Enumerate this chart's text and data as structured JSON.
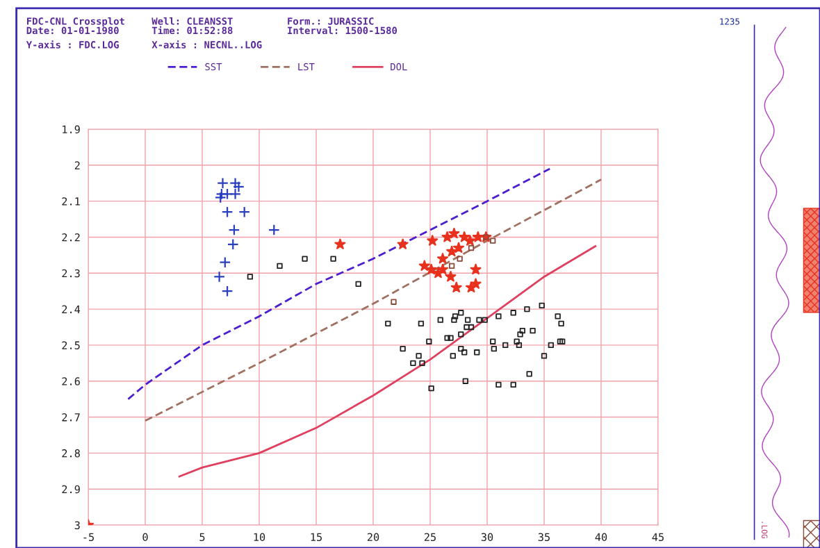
{
  "chart_data": {
    "type": "scatter",
    "title": "FDC-CNL Crossplot",
    "annotations": [
      "Date: 01-01-1980",
      "Well: CLEANSST",
      "Time: 01:52:88",
      "Form.: JURASSIC",
      "Interval: 1500-1580",
      "1235",
      ".LOG",
      "Y-axis : FDC.LOG",
      "X-axis : NECNL..LOG"
    ],
    "xlim": [
      -5,
      45
    ],
    "ylim": [
      3,
      1.9
    ],
    "xticks": [
      -5,
      0,
      5,
      10,
      15,
      20,
      25,
      30,
      35,
      40,
      45
    ],
    "yticks": [
      1.9,
      2,
      2.1,
      2.2,
      2.3,
      2.4,
      2.5,
      2.6,
      2.7,
      2.8,
      2.9,
      3
    ],
    "grid": true,
    "legend": "top",
    "series": [
      {
        "name": "SST",
        "type": "line",
        "line_style": "dashed",
        "marker": "none",
        "color": "#4b1fd0",
        "x": [
          -1.5,
          0,
          5,
          10,
          15,
          20,
          25,
          30,
          35.5
        ],
        "values": [
          2.65,
          2.61,
          2.5,
          2.42,
          2.33,
          2.26,
          2.18,
          2.1,
          2.01
        ]
      },
      {
        "name": "LST",
        "type": "line",
        "line_style": "dashed",
        "marker": "none",
        "color": "#a07060",
        "x": [
          0,
          10,
          20,
          30,
          40
        ],
        "values": [
          2.71,
          2.55,
          2.385,
          2.21,
          2.04
        ]
      },
      {
        "name": "DOL",
        "type": "line",
        "line_style": "solid",
        "marker": "none",
        "color": "#e04060",
        "x": [
          3,
          5,
          10,
          15,
          20,
          25,
          30,
          35,
          39.5
        ],
        "values": [
          2.865,
          2.84,
          2.8,
          2.73,
          2.64,
          2.54,
          2.425,
          2.31,
          2.225
        ]
      },
      {
        "marker": "cross",
        "color": "#2a3fc0",
        "x": [
          6.8,
          7.9,
          8.2,
          6.7,
          7.2,
          7.9,
          6.6,
          7.2,
          8.7,
          7.8,
          11.3,
          7.7,
          7.0,
          6.5,
          7.2
        ],
        "values": [
          2.05,
          2.05,
          2.06,
          2.08,
          2.08,
          2.08,
          2.09,
          2.13,
          2.13,
          2.18,
          2.18,
          2.22,
          2.27,
          2.31,
          2.35
        ]
      },
      {
        "marker": "square",
        "color": "#222222",
        "x": [
          9.2,
          11.8,
          14.0,
          16.5,
          18.7,
          21.3,
          24.2,
          25.9,
          27.2,
          27.7,
          27.1,
          28.3,
          28.2,
          28.6,
          29.3,
          29.8,
          31.0,
          32.3,
          33.5,
          34.8,
          36.2,
          36.5,
          26.5,
          26.8,
          27.7,
          24.9,
          22.6,
          24.0,
          23.5,
          24.3,
          27.0,
          27.7,
          28.0,
          29.1,
          30.5,
          30.6,
          31.6,
          32.6,
          32.8,
          32.9,
          33.1,
          34.0,
          35.0,
          35.6,
          36.4,
          36.6,
          33.7,
          28.1,
          31.0,
          32.3,
          25.1
        ],
        "values": [
          2.31,
          2.28,
          2.26,
          2.26,
          2.33,
          2.44,
          2.44,
          2.43,
          2.42,
          2.41,
          2.43,
          2.43,
          2.45,
          2.45,
          2.43,
          2.43,
          2.42,
          2.41,
          2.4,
          2.39,
          2.42,
          2.44,
          2.48,
          2.48,
          2.47,
          2.49,
          2.51,
          2.53,
          2.55,
          2.55,
          2.53,
          2.51,
          2.52,
          2.52,
          2.49,
          2.51,
          2.5,
          2.49,
          2.5,
          2.47,
          2.46,
          2.46,
          2.53,
          2.5,
          2.49,
          2.49,
          2.58,
          2.6,
          2.61,
          2.61,
          2.62
        ]
      },
      {
        "marker": "star",
        "color": "#e8321e",
        "x": [
          -5,
          17.1,
          22.6,
          25.2,
          26.5,
          27.1,
          28.0,
          24.5,
          25.1,
          25.7,
          26.1,
          26.8,
          27.3,
          28.6,
          29.0,
          29.0,
          26.1,
          26.9,
          27.5,
          28.5,
          29.2,
          29.9
        ],
        "values": [
          3,
          2.22,
          2.22,
          2.21,
          2.2,
          2.19,
          2.2,
          2.28,
          2.29,
          2.3,
          2.29,
          2.31,
          2.34,
          2.34,
          2.33,
          2.29,
          2.26,
          2.24,
          2.23,
          2.21,
          2.2,
          2.2
        ]
      },
      {
        "marker": "square",
        "color": "#8b4a3a",
        "x": [
          21.8,
          26.9,
          27.6,
          28.6,
          29.9,
          30.5
        ],
        "values": [
          2.38,
          2.28,
          2.26,
          2.23,
          2.2,
          2.21
        ]
      }
    ]
  }
}
